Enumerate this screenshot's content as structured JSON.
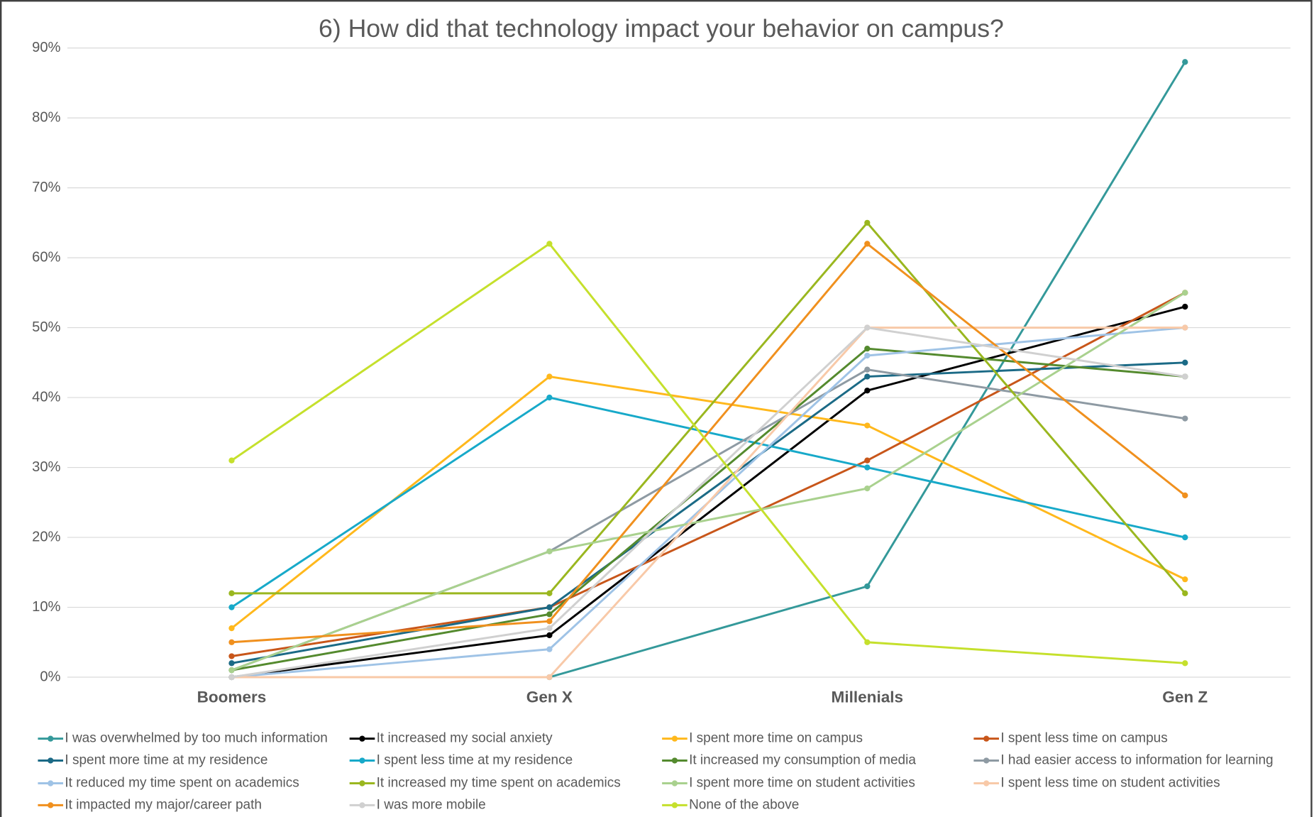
{
  "chart_data": {
    "type": "line",
    "title": "6) How did that technology impact your behavior on campus?",
    "categories": [
      "Boomers",
      "Gen X",
      "Millenials",
      "Gen Z"
    ],
    "ylim": [
      0,
      90
    ],
    "yticks": [
      {
        "value": 0,
        "label": "0%"
      },
      {
        "value": 10,
        "label": "10%"
      },
      {
        "value": 20,
        "label": "20%"
      },
      {
        "value": 30,
        "label": "30%"
      },
      {
        "value": 40,
        "label": "40%"
      },
      {
        "value": 50,
        "label": "50%"
      },
      {
        "value": 60,
        "label": "60%"
      },
      {
        "value": 70,
        "label": "70%"
      },
      {
        "value": 80,
        "label": "80%"
      },
      {
        "value": 90,
        "label": "90%"
      }
    ],
    "grid": true,
    "legend": "bottom",
    "series": [
      {
        "name": "I was overwhelmed by too much information",
        "color": "#34999a",
        "values": [
          0,
          0,
          13,
          88
        ]
      },
      {
        "name": "It increased my social anxiety",
        "color": "#000000",
        "values": [
          0,
          6,
          41,
          53
        ]
      },
      {
        "name": "I spent more time on campus",
        "color": "#ffb81c",
        "values": [
          7,
          43,
          36,
          14
        ]
      },
      {
        "name": "I spent less time on campus",
        "color": "#c8561a",
        "values": [
          3,
          10,
          31,
          55
        ]
      },
      {
        "name": "I spent more time at my residence",
        "color": "#1b6a86",
        "values": [
          2,
          10,
          43,
          45
        ]
      },
      {
        "name": "I spent less time at my residence",
        "color": "#17a9c9",
        "values": [
          10,
          40,
          30,
          20
        ]
      },
      {
        "name": "It increased my consumption of media",
        "color": "#548a2e",
        "values": [
          1,
          9,
          47,
          43
        ]
      },
      {
        "name": "I had easier access to information for learning",
        "color": "#8e9aa3",
        "values": [
          1,
          18,
          44,
          37
        ]
      },
      {
        "name": "It reduced my time spent on academics",
        "color": "#9fc3e6",
        "values": [
          0,
          4,
          46,
          50
        ]
      },
      {
        "name": "It increased my time spent on academics",
        "color": "#9ab71f",
        "values": [
          12,
          12,
          65,
          12
        ]
      },
      {
        "name": "I spent more time on student activities",
        "color": "#a9d18e",
        "values": [
          1,
          18,
          27,
          55
        ]
      },
      {
        "name": "I spent less time on student activities",
        "color": "#f8c9a8",
        "values": [
          0,
          0,
          50,
          50
        ]
      },
      {
        "name": "It impacted my major/career path",
        "color": "#f0901e",
        "values": [
          5,
          8,
          62,
          26
        ]
      },
      {
        "name": "I was more mobile",
        "color": "#d0d0d0",
        "values": [
          0,
          7,
          50,
          43
        ]
      },
      {
        "name": "None of the above",
        "color": "#c5e02c",
        "values": [
          31,
          62,
          5,
          2
        ]
      }
    ]
  }
}
